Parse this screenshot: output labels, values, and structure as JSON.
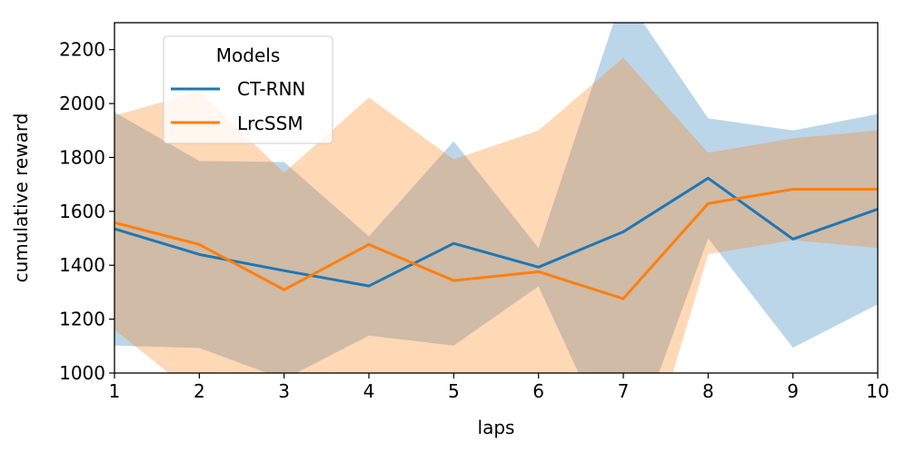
{
  "chart_data": {
    "type": "line",
    "title": "",
    "xlabel": "laps",
    "ylabel": "cumulative reward",
    "xlim": [
      1,
      10
    ],
    "ylim": [
      1000,
      2300
    ],
    "x": [
      1,
      2,
      3,
      4,
      5,
      6,
      7,
      8,
      9,
      10
    ],
    "xticks": [
      "1",
      "2",
      "3",
      "4",
      "5",
      "6",
      "7",
      "8",
      "9",
      "10"
    ],
    "yticks": [
      1000,
      1200,
      1400,
      1600,
      1800,
      2000,
      2200
    ],
    "grid": false,
    "legend": {
      "title": "Models",
      "placement": "upper-left"
    },
    "series": [
      {
        "name": "CT-RNN",
        "color": "#1f77b4",
        "values": [
          1535,
          1440,
          1380,
          1323,
          1481,
          1393,
          1524,
          1723,
          1497,
          1608
        ],
        "band_lower": [
          1102,
          1093,
          977,
          1139,
          1102,
          1322,
          640,
          1500,
          1094,
          1255
        ],
        "band_upper": [
          1968,
          1787,
          1783,
          1507,
          1860,
          1464,
          2408,
          1945,
          1900,
          1961
        ]
      },
      {
        "name": "LrcSSM",
        "color": "#ff7f0e",
        "values": [
          1558,
          1477,
          1309,
          1477,
          1343,
          1376,
          1276,
          1629,
          1682,
          1682
        ],
        "band_lower": [
          1161,
          909,
          875,
          932,
          893,
          852,
          382,
          1441,
          1493,
          1464
        ],
        "band_upper": [
          1955,
          2045,
          1743,
          2022,
          1793,
          1900,
          2170,
          1817,
          1871,
          1900
        ]
      }
    ]
  }
}
